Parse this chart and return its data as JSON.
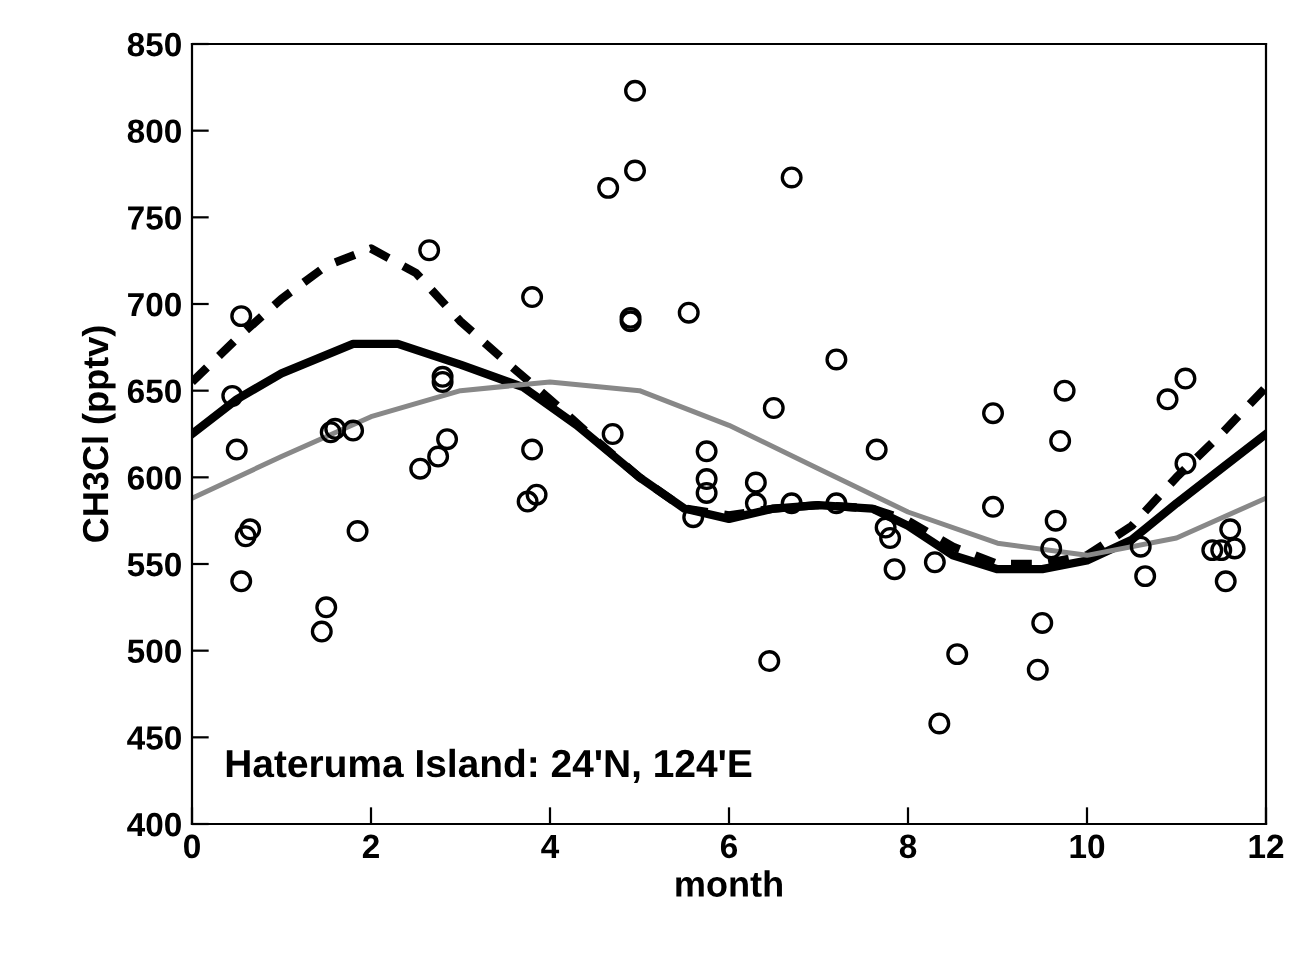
{
  "chart_data": {
    "type": "scatter",
    "xlabel": "month",
    "ylabel": "CH3Cl (pptv)",
    "annotations": [
      "Hateruma Island: 24'N, 124'E"
    ],
    "xlim": [
      0,
      12
    ],
    "xticks": [
      0,
      2,
      4,
      6,
      8,
      10,
      12
    ],
    "ylim": [
      400,
      850
    ],
    "yticks": [
      400,
      450,
      500,
      550,
      600,
      650,
      700,
      750,
      800,
      850
    ],
    "grid": false,
    "legend": false,
    "series": [
      {
        "marker": "circle",
        "color": "#000000",
        "x": [
          0.45,
          0.5,
          0.55,
          0.55,
          0.6,
          0.65,
          1.45,
          1.5,
          1.55,
          1.6,
          1.8,
          1.85,
          2.55,
          2.65,
          2.75,
          2.8,
          2.8,
          2.85,
          3.75,
          3.8,
          3.8,
          3.85,
          4.65,
          4.7,
          4.9,
          4.9,
          4.95,
          4.95,
          5.55,
          5.6,
          5.75,
          5.75,
          5.75,
          6.3,
          6.3,
          6.45,
          6.5,
          6.7,
          6.7,
          7.2,
          7.2,
          7.65,
          7.75,
          7.8,
          7.85,
          8.3,
          8.35,
          8.55,
          8.95,
          8.95,
          9.45,
          9.5,
          9.6,
          9.65,
          9.7,
          9.75,
          10.6,
          10.65,
          10.9,
          11.1,
          11.1,
          11.4,
          11.5,
          11.55,
          11.6,
          11.65
        ],
        "values": [
          647,
          616,
          540,
          693,
          566,
          570,
          511,
          525,
          626,
          628,
          627,
          569,
          605,
          731,
          612,
          655,
          658,
          622,
          586,
          704,
          616,
          590,
          767,
          625,
          692,
          690,
          777,
          823,
          695,
          577,
          591,
          599,
          615,
          585,
          597,
          494,
          640,
          773,
          585,
          668,
          585,
          616,
          571,
          565,
          547,
          551,
          458,
          498,
          637,
          583,
          489,
          516,
          559,
          575,
          621,
          650,
          560,
          543,
          645,
          657,
          608,
          558,
          558,
          540,
          570,
          559
        ]
      },
      {
        "type": "line",
        "marker": "none",
        "line_style": "dashed",
        "color": "#000000",
        "x": [
          0,
          0.5,
          1,
          1.5,
          2,
          2.5,
          3,
          3.5,
          4,
          4.5,
          5,
          5.5,
          6,
          6.5,
          7,
          7.6,
          8,
          8.5,
          9,
          9.5,
          10,
          10.5,
          11,
          11.5,
          12
        ],
        "values": [
          655,
          680,
          703,
          722,
          732,
          718,
          690,
          667,
          645,
          622,
          600,
          582,
          578,
          582,
          584,
          582,
          575,
          560,
          550,
          550,
          555,
          572,
          600,
          625,
          652
        ]
      },
      {
        "type": "line",
        "marker": "none",
        "line_style": "solid",
        "color": "#000000",
        "x": [
          0,
          0.5,
          1,
          1.8,
          2.3,
          3,
          3.7,
          4.3,
          5,
          5.5,
          6,
          6.5,
          7,
          7.6,
          8,
          8.5,
          9,
          9.5,
          10,
          10.5,
          11,
          11.5,
          12
        ],
        "values": [
          625,
          645,
          660,
          677,
          677,
          665,
          652,
          630,
          600,
          582,
          576,
          582,
          584,
          582,
          572,
          555,
          547,
          547,
          552,
          564,
          585,
          605,
          625
        ]
      },
      {
        "type": "line",
        "marker": "none",
        "line_style": "solid",
        "color": "#888888",
        "x": [
          0,
          1,
          2,
          3,
          4,
          5,
          6,
          7,
          8,
          9,
          10,
          11,
          12
        ],
        "values": [
          588,
          612,
          635,
          650,
          655,
          650,
          630,
          605,
          580,
          562,
          555,
          565,
          588
        ]
      }
    ]
  }
}
